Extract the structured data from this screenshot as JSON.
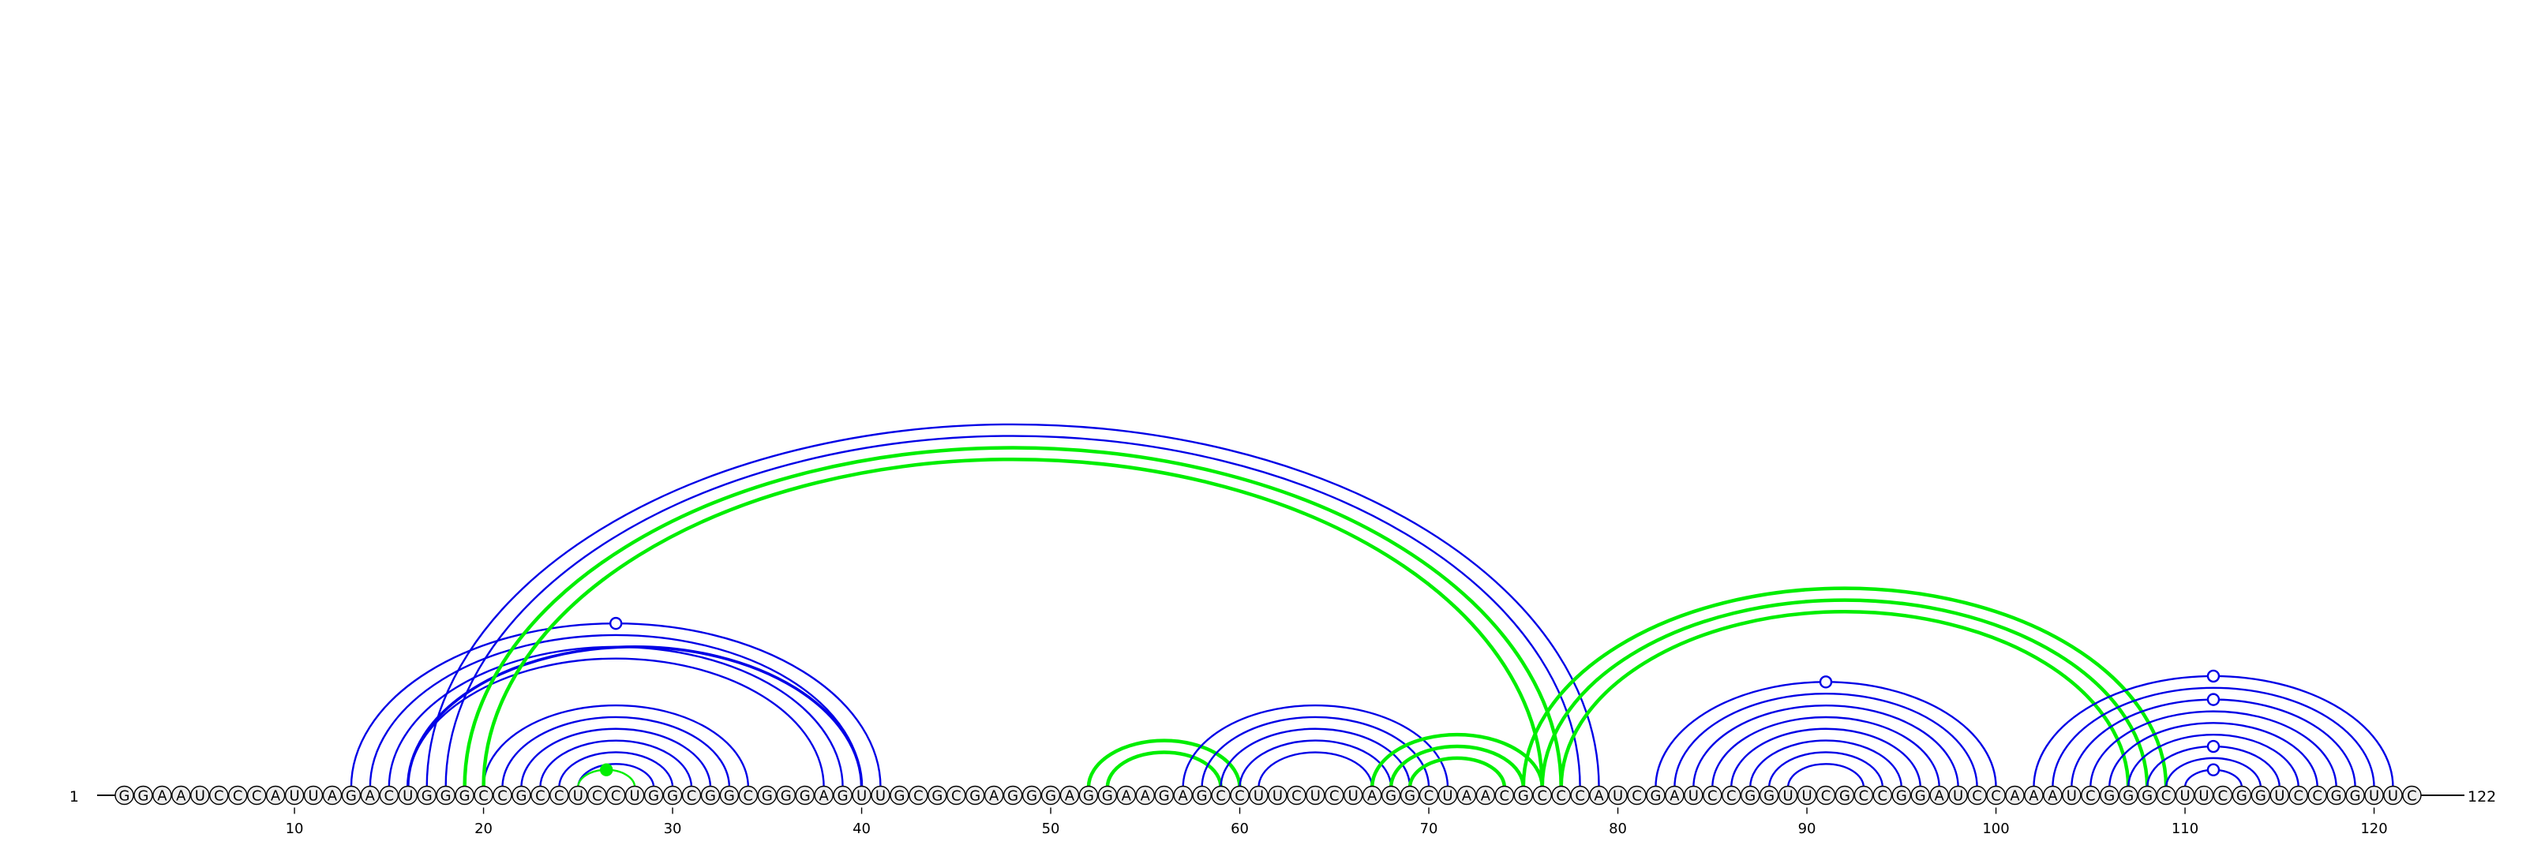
{
  "sequence": "GGAAUCCCAUUAGACUGGGCCGCCUCCUGGCGGCGGGAGUUGCGCGAGGGAGGAAGAGCCUUCUCUAGGCUAACGCCCAUCGAUCCGGUUCGCCGGAUCCAAAUCGGGCUUCGGUCCGGUUC",
  "start_label": "1",
  "end_label": "122",
  "ticks": [
    10,
    20,
    30,
    40,
    50,
    60,
    70,
    80,
    90,
    100,
    110,
    120
  ],
  "colors": {
    "blue": "#0000e6",
    "green": "#00ee00",
    "nucleotide_fill": "#eeeeee",
    "stroke": "#000000"
  },
  "arc_groups": [
    {
      "color": "blue",
      "width": 2.4,
      "pairs": [
        [
          13,
          41
        ],
        [
          14,
          40
        ],
        [
          15,
          39
        ],
        [
          16,
          38
        ]
      ],
      "marker_at": 27
    },
    {
      "color": "blue",
      "width": 3.6,
      "pairs": [
        [
          16,
          40
        ]
      ]
    },
    {
      "color": "blue",
      "width": 2.4,
      "pairs": [
        [
          20,
          34
        ],
        [
          21,
          33
        ],
        [
          22,
          32
        ],
        [
          23,
          31
        ],
        [
          24,
          30
        ],
        [
          25,
          29
        ]
      ]
    },
    {
      "color": "green",
      "width": 2.4,
      "pairs": [
        [
          25,
          28
        ]
      ],
      "marker_at": 26.5,
      "marker_filled": true
    },
    {
      "color": "blue",
      "width": 2.4,
      "pairs": [
        [
          17,
          79
        ],
        [
          18,
          78
        ],
        [
          19,
          77
        ]
      ]
    },
    {
      "color": "green",
      "width": 4.5,
      "pairs": [
        [
          19,
          77
        ],
        [
          20,
          76
        ]
      ]
    },
    {
      "color": "green",
      "width": 4.5,
      "pairs": [
        [
          52,
          60
        ],
        [
          53,
          59
        ]
      ]
    },
    {
      "color": "blue",
      "width": 2.4,
      "pairs": [
        [
          57,
          71
        ],
        [
          58,
          70
        ],
        [
          59,
          69
        ],
        [
          60,
          68
        ],
        [
          61,
          67
        ]
      ]
    },
    {
      "color": "green",
      "width": 4.5,
      "pairs": [
        [
          67,
          76
        ],
        [
          68,
          75
        ],
        [
          69,
          74
        ]
      ]
    },
    {
      "color": "green",
      "width": 4.5,
      "pairs": [
        [
          75,
          109
        ],
        [
          76,
          108
        ],
        [
          77,
          107
        ]
      ]
    },
    {
      "color": "blue",
      "width": 2.4,
      "pairs": [
        [
          82,
          100
        ],
        [
          83,
          99
        ],
        [
          84,
          98
        ],
        [
          85,
          97
        ],
        [
          86,
          96
        ],
        [
          87,
          95
        ],
        [
          88,
          94
        ],
        [
          89,
          93
        ]
      ],
      "marker_at": 91
    },
    {
      "color": "blue",
      "width": 2.4,
      "pairs": [
        [
          102,
          121
        ],
        [
          103,
          120
        ],
        [
          104,
          119
        ],
        [
          105,
          118
        ],
        [
          106,
          117
        ],
        [
          107,
          116
        ],
        [
          108,
          115
        ],
        [
          109,
          114
        ],
        [
          110,
          113
        ]
      ],
      "markers_at": [
        111.5
      ]
    }
  ]
}
